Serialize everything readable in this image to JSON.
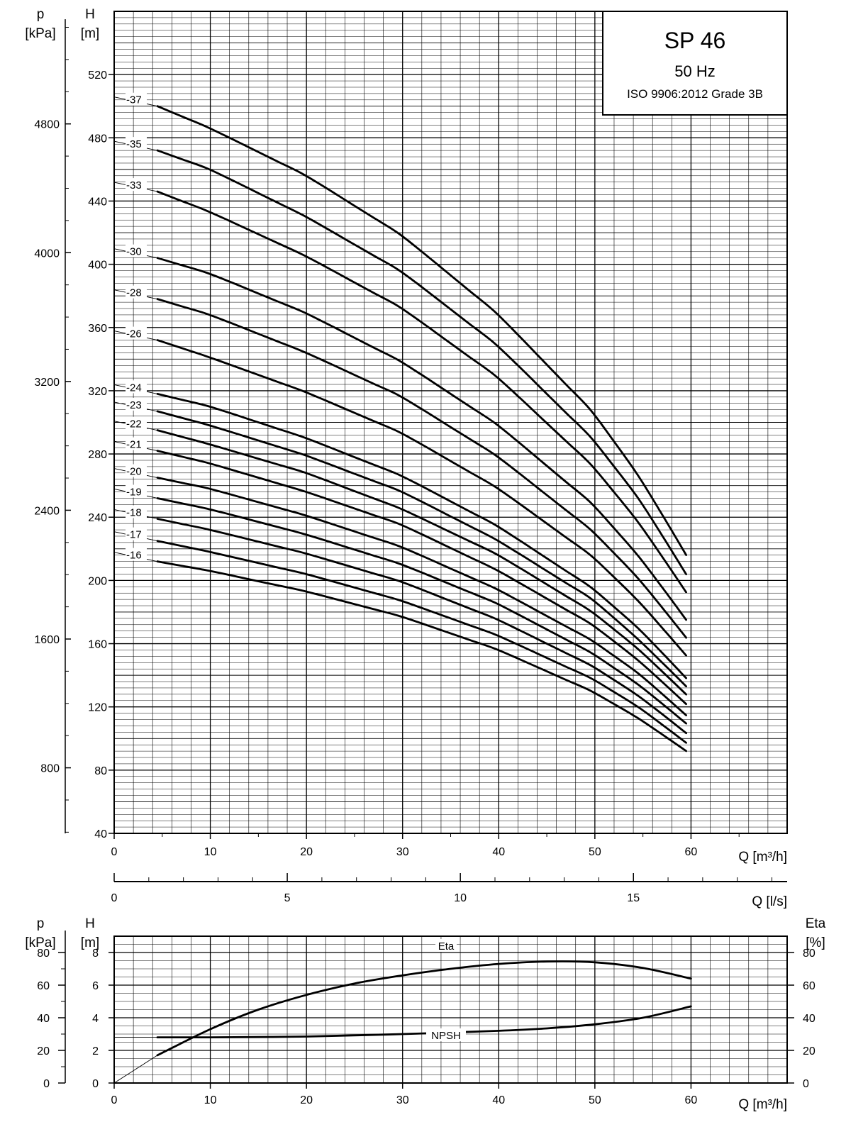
{
  "title_box": {
    "model": "SP 46",
    "frequency": "50 Hz",
    "standard": "ISO 9906:2012 Grade 3B"
  },
  "chart_data": [
    {
      "type": "line",
      "name": "head-curves",
      "x_axis": {
        "quantity": "Q",
        "unit": "[m³/h]",
        "range": [
          0,
          70
        ],
        "ticks": [
          0,
          10,
          20,
          30,
          40,
          50,
          60
        ]
      },
      "y_axis_left": {
        "quantity": "H",
        "unit": "[m]",
        "range": [
          40,
          560
        ],
        "ticks": [
          40,
          80,
          120,
          160,
          200,
          240,
          280,
          320,
          360,
          400,
          440,
          480,
          520
        ]
      },
      "y_axis_pressure": {
        "quantity": "p",
        "unit": "[kPa]",
        "ticks": [
          800,
          1600,
          2400,
          3200,
          4000,
          4800
        ]
      },
      "secondary_x_axis": {
        "quantity": "Q",
        "unit": "[l/s]",
        "range": [
          0,
          19.44
        ],
        "ticks": [
          0,
          5,
          10,
          15
        ]
      },
      "grid": true,
      "series": [
        {
          "name": "-37",
          "x": [
            4.5,
            10,
            20,
            30,
            40,
            50,
            55,
            60
          ],
          "y": [
            500,
            486,
            456,
            418,
            368,
            305,
            262,
            211
          ]
        },
        {
          "name": "-35",
          "x": [
            4.5,
            10,
            20,
            30,
            40,
            50,
            55,
            60
          ],
          "y": [
            472,
            460,
            430,
            395,
            348,
            288,
            248,
            199
          ]
        },
        {
          "name": "-33",
          "x": [
            4.5,
            10,
            20,
            30,
            40,
            50,
            55,
            60
          ],
          "y": [
            446,
            433,
            405,
            372,
            328,
            271,
            233,
            188
          ]
        },
        {
          "name": "-30",
          "x": [
            4.5,
            10,
            20,
            30,
            40,
            50,
            55,
            60
          ],
          "y": [
            404,
            394,
            369,
            338,
            298,
            247,
            212,
            171
          ]
        },
        {
          "name": "-28",
          "x": [
            4.5,
            10,
            20,
            30,
            40,
            50,
            55,
            60
          ],
          "y": [
            378,
            368,
            344,
            316,
            278,
            230,
            198,
            160
          ]
        },
        {
          "name": "-26",
          "x": [
            4.5,
            10,
            20,
            30,
            40,
            50,
            55,
            60
          ],
          "y": [
            352,
            341,
            319,
            293,
            258,
            214,
            184,
            149
          ]
        },
        {
          "name": "-24",
          "x": [
            4.5,
            10,
            20,
            30,
            40,
            50,
            55,
            60
          ],
          "y": [
            318,
            310,
            290,
            266,
            234,
            194,
            167,
            135
          ]
        },
        {
          "name": "-23",
          "x": [
            4.5,
            10,
            20,
            30,
            40,
            50,
            55,
            60
          ],
          "y": [
            307,
            298,
            279,
            256,
            225,
            187,
            160,
            130
          ]
        },
        {
          "name": "-22",
          "x": [
            4.5,
            10,
            20,
            30,
            40,
            50,
            55,
            60
          ],
          "y": [
            295,
            286,
            268,
            245,
            216,
            179,
            154,
            125
          ]
        },
        {
          "name": "-21",
          "x": [
            4.5,
            10,
            20,
            30,
            40,
            50,
            55,
            60
          ],
          "y": [
            282,
            274,
            256,
            235,
            206,
            171,
            147,
            119
          ]
        },
        {
          "name": "-20",
          "x": [
            4.5,
            10,
            20,
            30,
            40,
            50,
            55,
            60
          ],
          "y": [
            265,
            258,
            241,
            221,
            194,
            161,
            139,
            112
          ]
        },
        {
          "name": "-19",
          "x": [
            4.5,
            10,
            20,
            30,
            40,
            50,
            55,
            60
          ],
          "y": [
            252,
            245,
            229,
            210,
            185,
            153,
            132,
            107
          ]
        },
        {
          "name": "-18",
          "x": [
            4.5,
            10,
            20,
            30,
            40,
            50,
            55,
            60
          ],
          "y": [
            239,
            232,
            217,
            199,
            175,
            145,
            125,
            101
          ]
        },
        {
          "name": "-17",
          "x": [
            4.5,
            10,
            20,
            30,
            40,
            50,
            55,
            60
          ],
          "y": [
            225,
            218,
            204,
            187,
            165,
            137,
            118,
            95
          ]
        },
        {
          "name": "-16",
          "x": [
            4.5,
            10,
            20,
            30,
            40,
            50,
            55,
            60
          ],
          "y": [
            212,
            206,
            193,
            177,
            156,
            129,
            111,
            90
          ]
        }
      ]
    },
    {
      "type": "line",
      "name": "eta-npsh-curves",
      "x_axis": {
        "quantity": "Q",
        "unit": "[m³/h]",
        "range": [
          0,
          70
        ],
        "ticks": [
          0,
          10,
          20,
          30,
          40,
          50,
          60
        ]
      },
      "y_axis_left": {
        "quantity": "H",
        "unit": "[m]",
        "range": [
          0,
          8
        ],
        "ticks": [
          0,
          2,
          4,
          6,
          8
        ]
      },
      "y_axis_pressure": {
        "quantity": "p",
        "unit": "[kPa]",
        "ticks": [
          0,
          20,
          40,
          60,
          80
        ]
      },
      "y_axis_right": {
        "quantity": "Eta",
        "unit": "[%]",
        "ticks": [
          0,
          20,
          40,
          60,
          80
        ]
      },
      "grid": true,
      "series": [
        {
          "name": "Eta",
          "x": [
            4.5,
            10,
            15,
            20,
            25,
            30,
            35,
            40,
            45,
            50,
            55,
            60
          ],
          "y_percent": [
            17,
            33,
            45,
            54,
            61,
            66,
            70,
            73,
            74.5,
            74,
            70.5,
            64
          ]
        },
        {
          "name": "NPSH",
          "x": [
            4.5,
            10,
            20,
            30,
            40,
            45,
            50,
            55,
            60
          ],
          "y_m": [
            2.8,
            2.8,
            2.85,
            3.0,
            3.2,
            3.35,
            3.6,
            4.0,
            4.7
          ]
        }
      ]
    }
  ]
}
